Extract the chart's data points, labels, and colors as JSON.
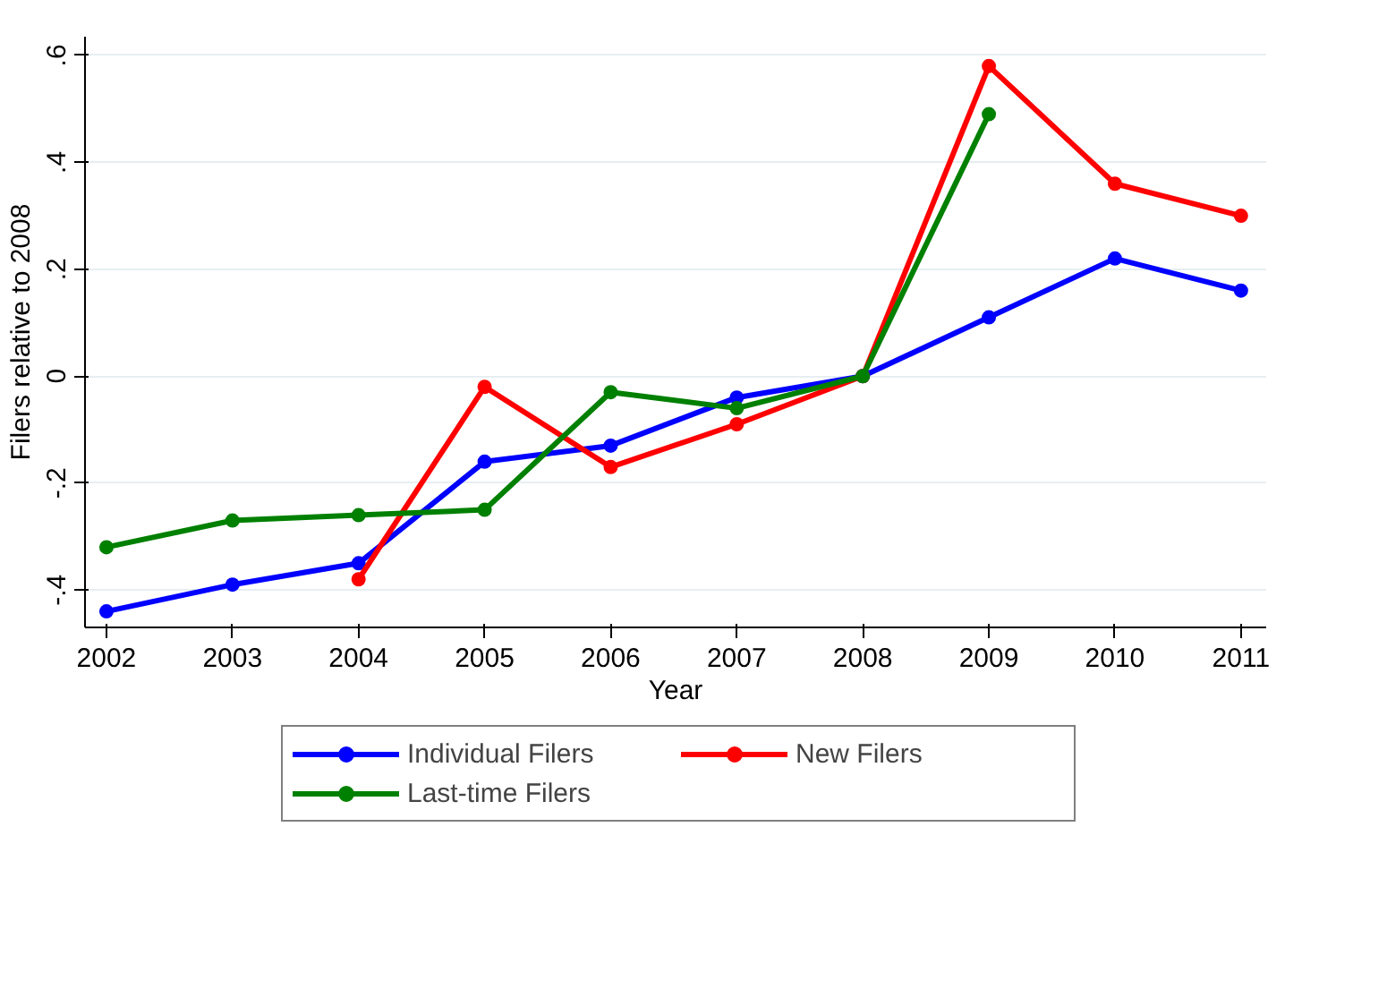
{
  "chart_data": {
    "type": "line",
    "xlabel": "Year",
    "ylabel": "Filers relative to 2008",
    "x": [
      2002,
      2003,
      2004,
      2005,
      2006,
      2007,
      2008,
      2009,
      2010,
      2011
    ],
    "series": [
      {
        "name": "Individual Filers",
        "color": "#0000ff",
        "values": [
          -0.44,
          -0.39,
          -0.35,
          -0.16,
          -0.13,
          -0.04,
          0,
          0.11,
          0.22,
          0.16
        ]
      },
      {
        "name": "New Filers",
        "color": "#ff0000",
        "values": [
          null,
          null,
          -0.38,
          -0.02,
          -0.17,
          -0.09,
          0,
          0.58,
          0.36,
          0.3
        ]
      },
      {
        "name": "Last-time Filers",
        "color": "#008000",
        "values": [
          -0.32,
          -0.27,
          -0.26,
          -0.25,
          -0.03,
          -0.06,
          0,
          0.49,
          null,
          null
        ]
      }
    ],
    "xlim": [
      2001.83,
      2011.2
    ],
    "ylim": [
      -0.47,
      0.635
    ],
    "xticks": [
      2002,
      2003,
      2004,
      2005,
      2006,
      2007,
      2008,
      2009,
      2010,
      2011
    ],
    "yticks": [
      {
        "value": -0.4,
        "label": "-.4"
      },
      {
        "value": -0.2,
        "label": "-.2"
      },
      0,
      {
        "value": 0.2,
        "label": ".2"
      },
      {
        "value": 0.4,
        "label": ".4"
      },
      {
        "value": 0.6,
        "label": ".6"
      }
    ],
    "grid": "y",
    "legend": "bottom",
    "marker": "circle",
    "line_style": "solid"
  }
}
